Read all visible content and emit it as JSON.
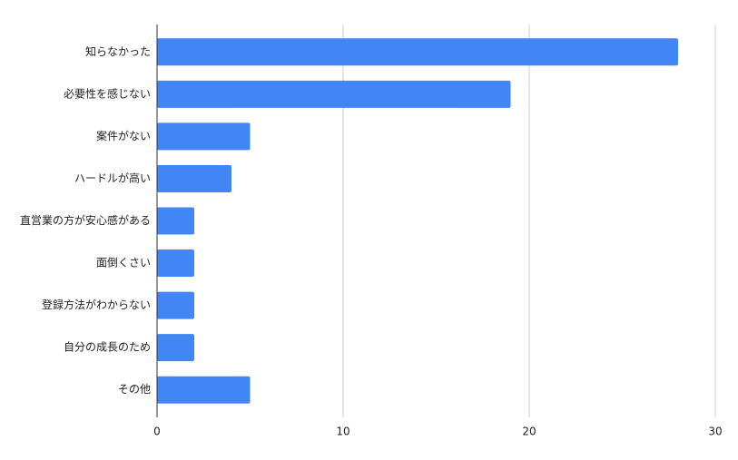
{
  "chart_data": {
    "type": "barh",
    "categories": [
      "知らなかった",
      "必要性を感じない",
      "案件がない",
      "ハードルが高い",
      "直営業の方が安心感がある",
      "面倒くさい",
      "登録方法がわからない",
      "自分の成長のため",
      "その他"
    ],
    "values": [
      28,
      19,
      5,
      4,
      2,
      2,
      2,
      2,
      5
    ],
    "color": "#4285f4",
    "xlim": [
      0,
      30
    ],
    "xticks": [
      0,
      10,
      20,
      30
    ],
    "grid": true
  }
}
